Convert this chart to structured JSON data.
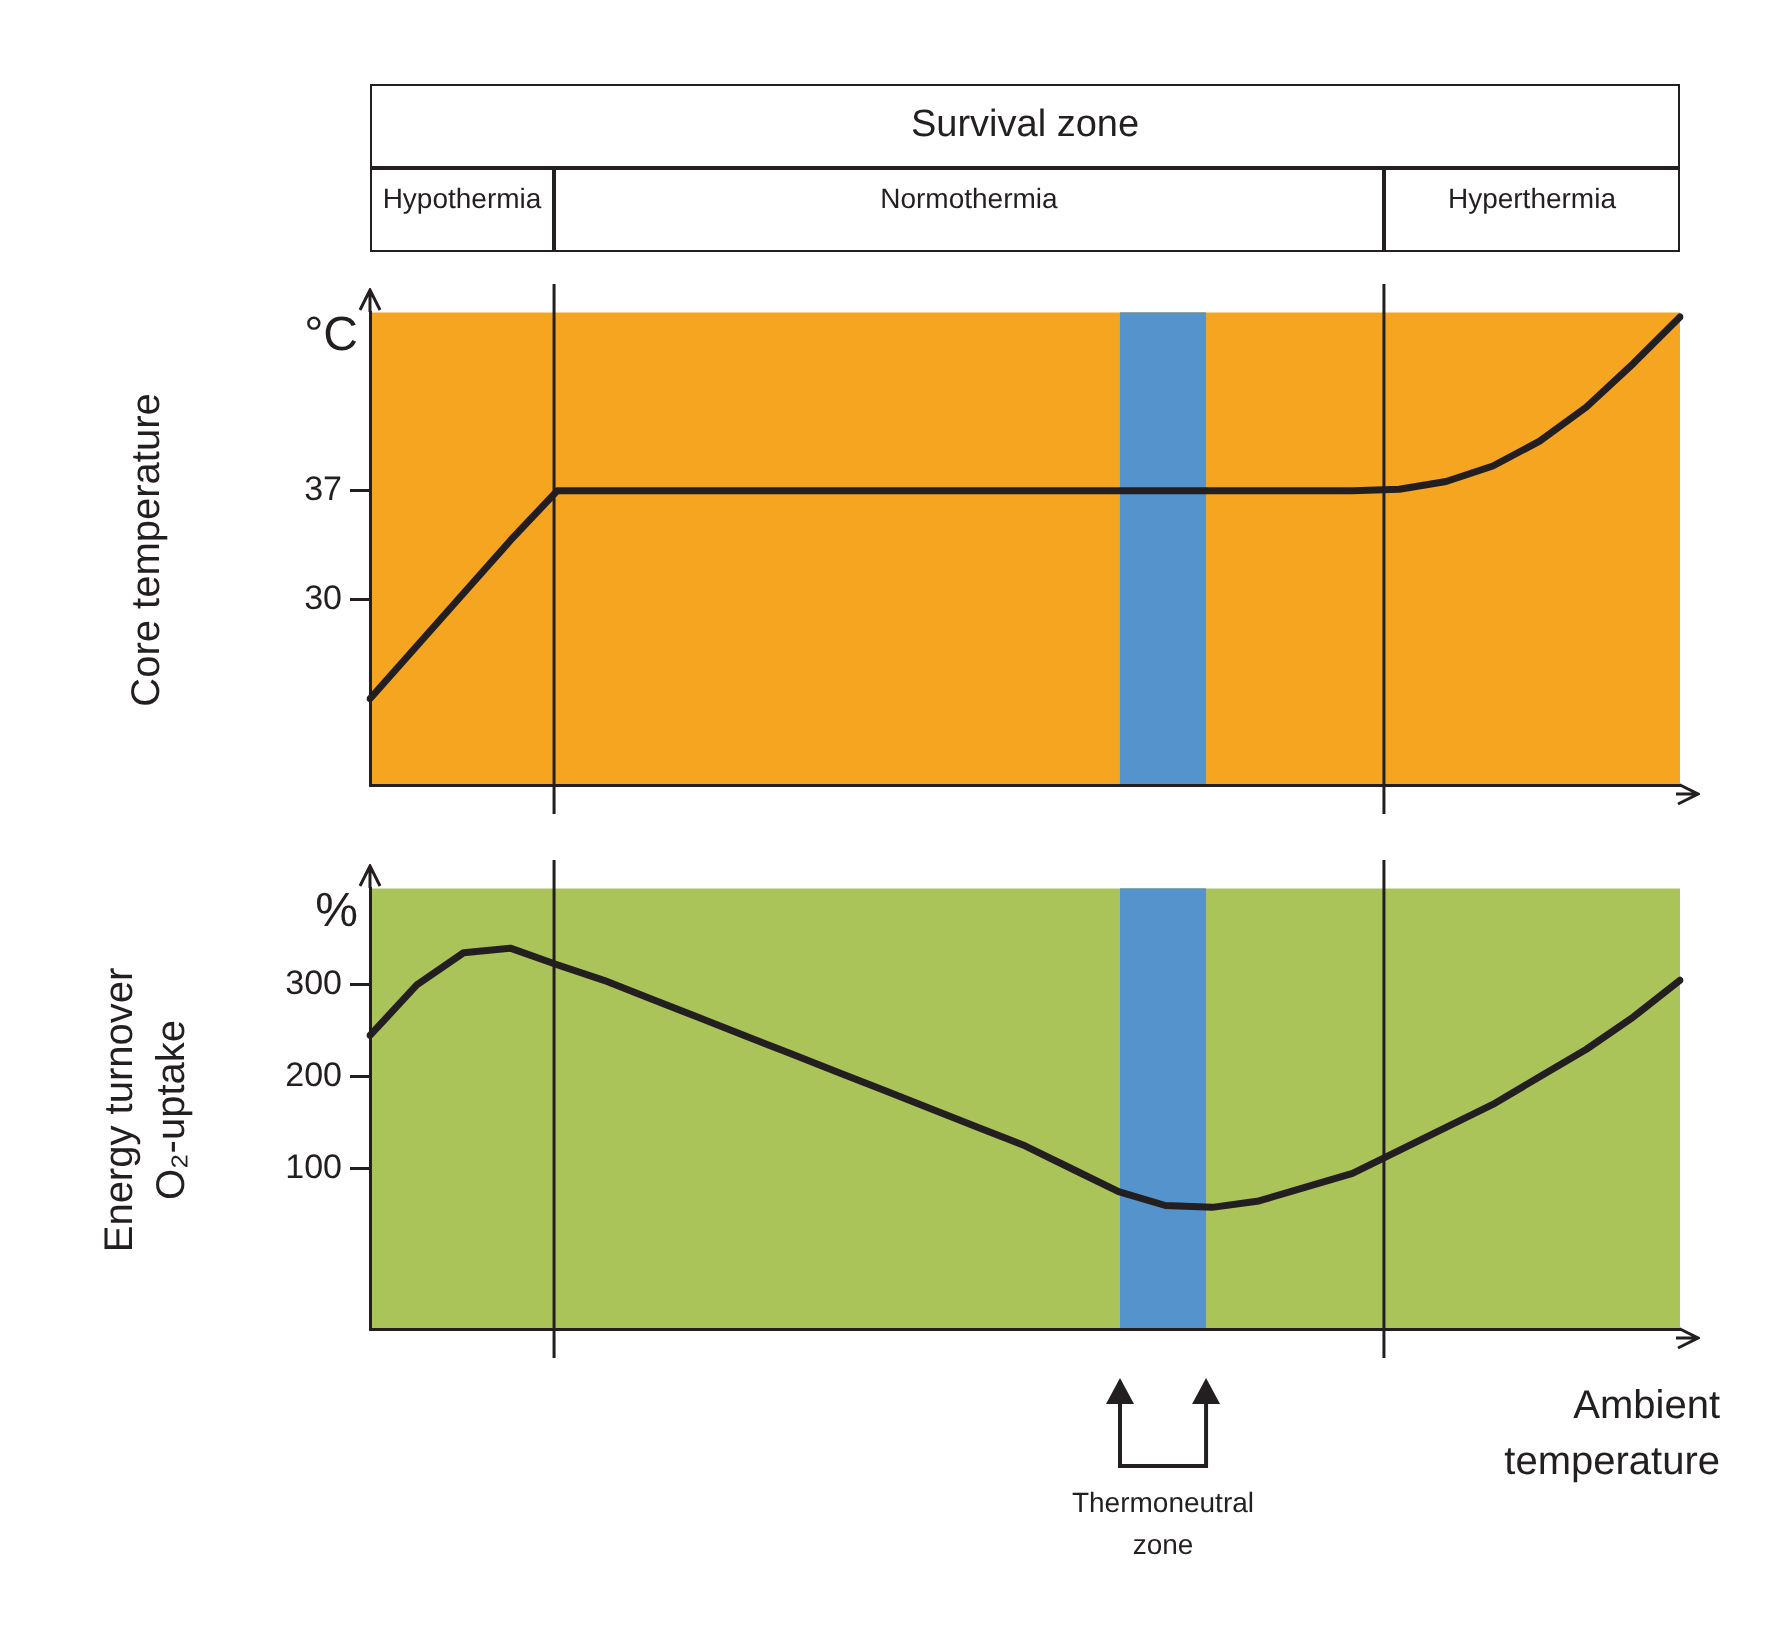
{
  "chart_data": [
    {
      "type": "line",
      "ylabel": "Core temperature",
      "categories": [
        null,
        null,
        null,
        null,
        null,
        null,
        null,
        null,
        null,
        null,
        null,
        null,
        null,
        null,
        null,
        null,
        null,
        null,
        null,
        null,
        null,
        null,
        null,
        null,
        null,
        null,
        null,
        null,
        null
      ],
      "series": [
        {
          "color": "#231f20",
          "values": [
            23.6,
            27,
            30.4,
            33.8,
            37,
            37,
            37,
            37,
            37,
            37,
            37,
            37,
            37,
            37,
            37,
            37,
            37,
            37,
            37,
            37,
            37,
            37,
            37.1,
            37.6,
            38.6,
            40.2,
            42.4,
            45.2,
            48.2
          ]
        }
      ],
      "ylim": [
        18,
        48.5
      ],
      "yticks": [
        30,
        37
      ],
      "tick_labels": "y",
      "annotations": [
        "°C",
        "Survival zone",
        "Hypothermia",
        "Normothermia",
        "Hyperthermia"
      ],
      "bands": [
        {
          "axis": "y",
          "from": 18,
          "to": 48.5,
          "color": "#f5a51f"
        }
      ]
    },
    {
      "type": "line",
      "ylabel": "Energy turnover\nO₂-uptake",
      "xlabel": "Ambient temperature",
      "categories": [
        null,
        null,
        null,
        null,
        null,
        null,
        null,
        null,
        null,
        null,
        null,
        null,
        null,
        null,
        null,
        null,
        null,
        null,
        null,
        null,
        null,
        null,
        null,
        null,
        null,
        null,
        null,
        null,
        null
      ],
      "series": [
        {
          "color": "#231f20",
          "values": [
            245,
            300,
            335,
            340,
            322,
            305,
            285,
            265,
            245,
            225,
            205,
            185,
            165,
            145,
            125,
            100,
            75,
            60,
            58,
            65,
            80,
            95,
            120,
            145,
            170,
            200,
            230,
            265,
            305
          ]
        }
      ],
      "ylim": [
        -75,
        405
      ],
      "yticks": [
        100,
        200,
        300
      ],
      "tick_labels": "y",
      "annotations": [
        "%",
        "Thermoneutral zone"
      ],
      "bands": [
        {
          "axis": "y",
          "from": -75,
          "to": 405,
          "color": "#abc459"
        }
      ]
    }
  ]
}
